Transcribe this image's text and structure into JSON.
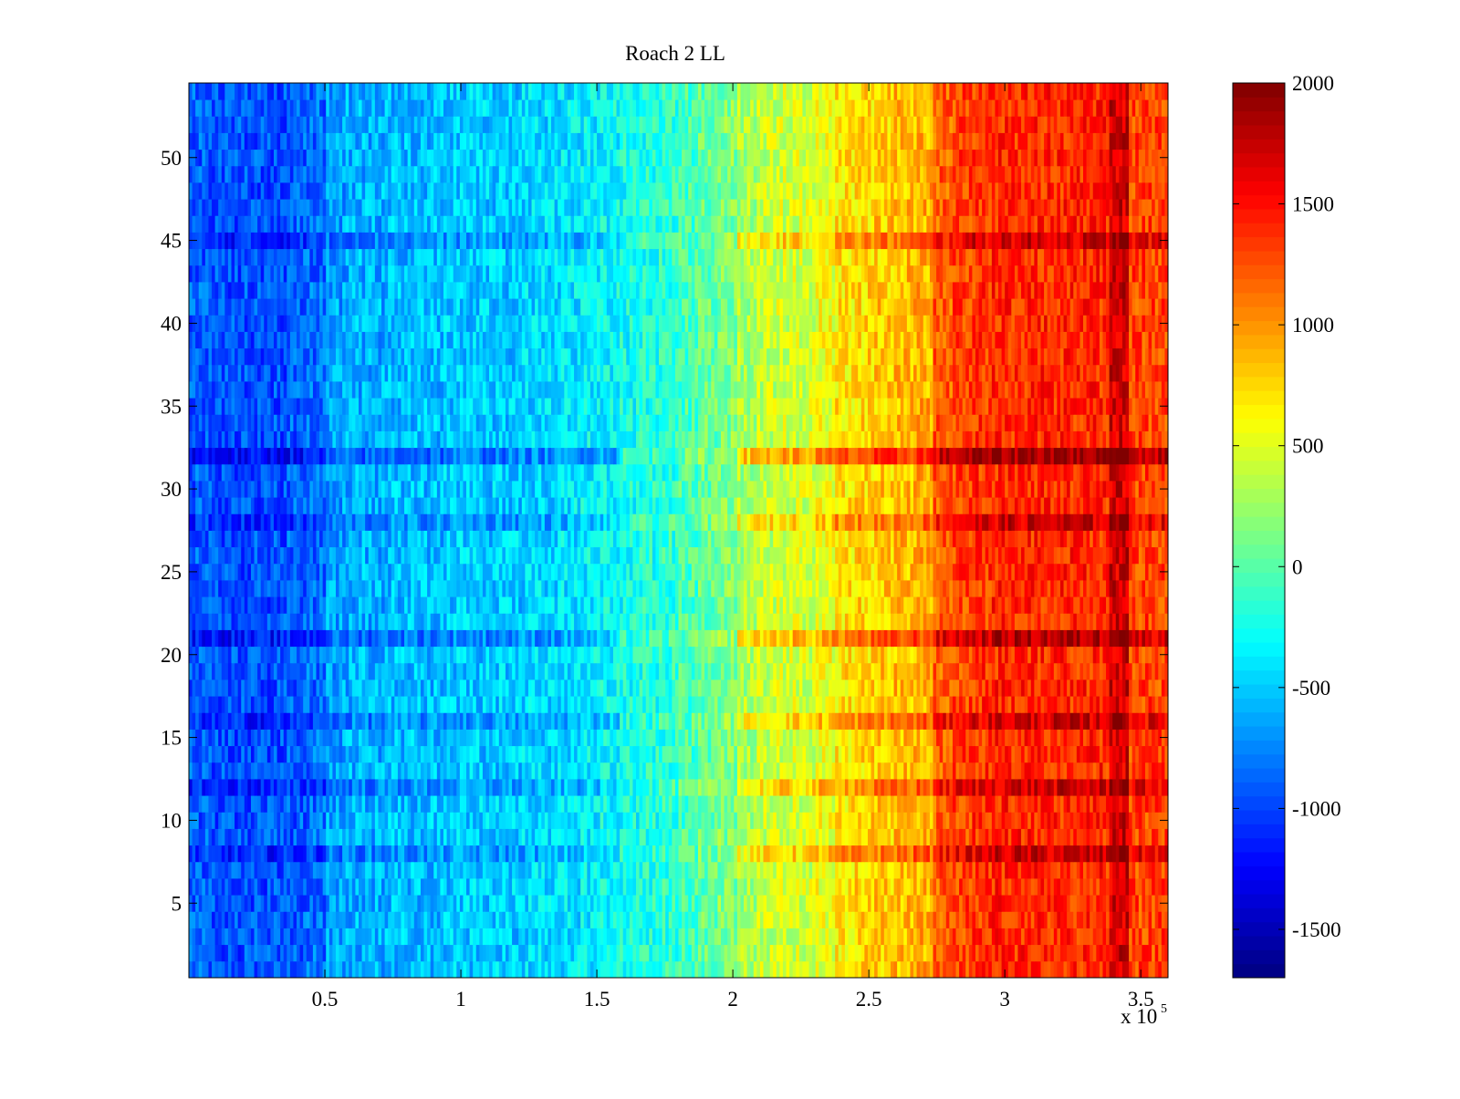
{
  "chart_data": {
    "type": "heatmap",
    "title": "Roach 2 LL",
    "xlabel": "",
    "ylabel": "",
    "x_multiplier_label": "x 10",
    "x_multiplier_exponent": "5",
    "xlim": [
      0,
      360000
    ],
    "ylim": [
      0.5,
      54.5
    ],
    "x_ticks": [
      {
        "value": 50000,
        "label": "0.5"
      },
      {
        "value": 100000,
        "label": "1"
      },
      {
        "value": 150000,
        "label": "1.5"
      },
      {
        "value": 200000,
        "label": "2"
      },
      {
        "value": 250000,
        "label": "2.5"
      },
      {
        "value": 300000,
        "label": "3"
      },
      {
        "value": 350000,
        "label": "3.5"
      }
    ],
    "y_ticks": [
      {
        "value": 5,
        "label": "5"
      },
      {
        "value": 10,
        "label": "10"
      },
      {
        "value": 15,
        "label": "15"
      },
      {
        "value": 20,
        "label": "20"
      },
      {
        "value": 25,
        "label": "25"
      },
      {
        "value": 30,
        "label": "30"
      },
      {
        "value": 35,
        "label": "35"
      },
      {
        "value": 40,
        "label": "40"
      },
      {
        "value": 45,
        "label": "45"
      },
      {
        "value": 50,
        "label": "50"
      }
    ],
    "rows": 54,
    "column_bin_width": 7200,
    "column_x_centers": [
      3600,
      10800,
      18000,
      25200,
      32400,
      39600,
      46800,
      54000,
      61200,
      68400,
      75600,
      82800,
      90000,
      97200,
      104400,
      111600,
      118800,
      126000,
      133200,
      140400,
      147600,
      154800,
      162000,
      169200,
      176400,
      183600,
      190800,
      198000,
      205200,
      212400,
      219600,
      226800,
      234000,
      241200,
      248400,
      255600,
      262800,
      270000,
      277200,
      284400,
      291600,
      298800,
      306000,
      313200,
      320400,
      327600,
      334800,
      342000,
      349200,
      356400
    ],
    "column_profile_values": [
      -900,
      -950,
      -950,
      -950,
      -950,
      -900,
      -850,
      -650,
      -600,
      -600,
      -550,
      -550,
      -550,
      -500,
      -500,
      -500,
      -500,
      -450,
      -450,
      -400,
      -350,
      -300,
      -250,
      -200,
      -150,
      -50,
      50,
      150,
      300,
      400,
      450,
      450,
      550,
      700,
      750,
      800,
      850,
      900,
      1200,
      1300,
      1350,
      1400,
      1400,
      1400,
      1400,
      1400,
      1400,
      1700,
      1300,
      1300
    ],
    "row_offsets_values": [
      {
        "row": 8,
        "offset": 300
      },
      {
        "row": 12,
        "offset": 300
      },
      {
        "row": 16,
        "offset": 300
      },
      {
        "row": 21,
        "offset": 400
      },
      {
        "row": 28,
        "offset": 300
      },
      {
        "row": 32,
        "offset": 500
      },
      {
        "row": 45,
        "offset": 300
      }
    ],
    "colorbar": {
      "colormap": "jet",
      "clim": [
        -1700,
        2000
      ],
      "ticks": [
        {
          "value": -1500,
          "label": "-1500"
        },
        {
          "value": -1000,
          "label": "-1000"
        },
        {
          "value": -500,
          "label": "-500"
        },
        {
          "value": 0,
          "label": "0"
        },
        {
          "value": 500,
          "label": "500"
        },
        {
          "value": 1000,
          "label": "1000"
        },
        {
          "value": 1500,
          "label": "1500"
        },
        {
          "value": 2000,
          "label": "2000"
        }
      ]
    },
    "grid": false,
    "legend": "none"
  }
}
